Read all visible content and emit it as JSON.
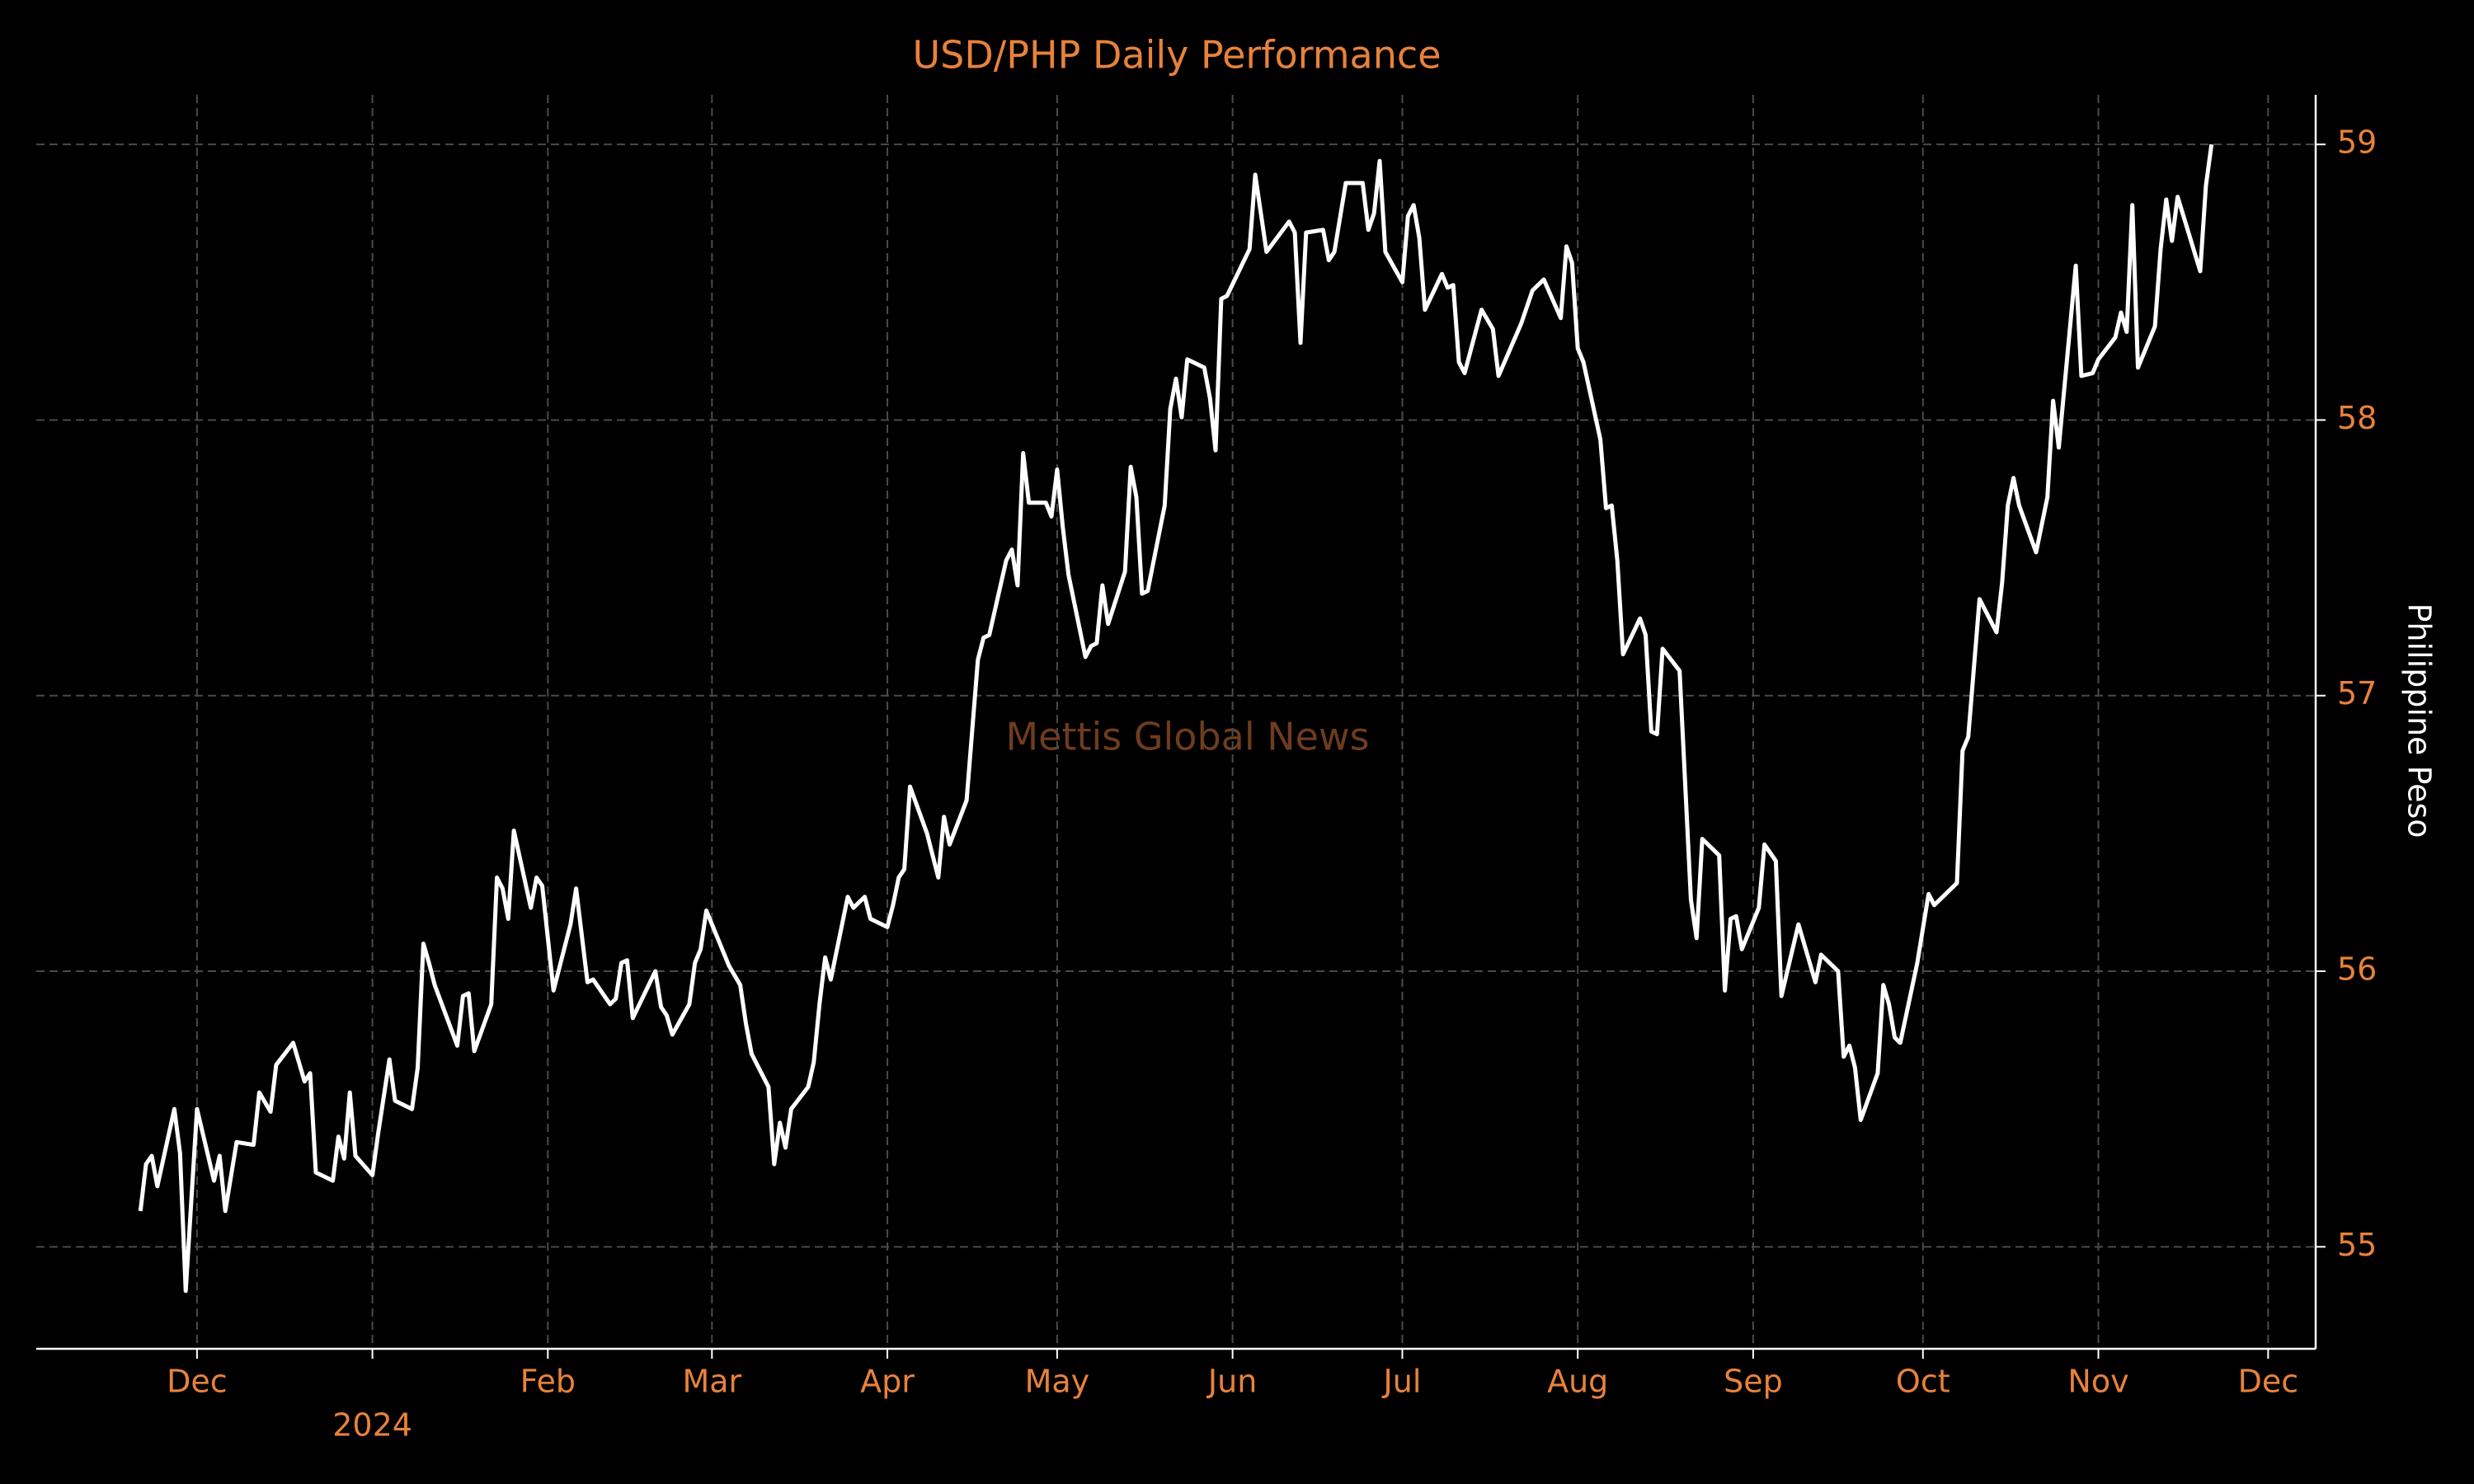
{
  "chart_data": {
    "type": "line",
    "title": "USD/PHP Daily Performance",
    "watermark": "Mettis Global News",
    "y_label": "Philippine Peso",
    "x": [
      -10,
      -9,
      -8,
      -7,
      -4,
      -3,
      -2,
      0,
      3,
      4,
      5,
      7,
      10,
      11,
      13,
      14,
      17,
      19,
      20,
      21,
      24,
      25,
      26,
      27,
      28,
      31,
      32,
      34,
      35,
      38,
      39,
      40,
      41,
      42,
      46,
      47,
      48,
      49,
      52,
      53,
      54,
      55,
      56,
      59,
      60,
      61,
      63,
      66,
      67,
      69,
      70,
      73,
      74,
      75,
      76,
      77,
      81,
      82,
      83,
      84,
      87,
      88,
      89,
      90,
      94,
      96,
      97,
      98,
      101,
      102,
      103,
      104,
      105,
      108,
      109,
      110,
      111,
      112,
      115,
      116,
      118,
      119,
      122,
      123,
      124,
      125,
      126,
      129,
      131,
      132,
      133,
      136,
      138,
      139,
      140,
      143,
      144,
      145,
      146,
      147,
      150,
      151,
      152,
      153,
      154,
      157,
      158,
      159,
      160,
      161,
      164,
      165,
      166,
      167,
      168,
      171,
      172,
      173,
      174,
      175,
      178,
      179,
      180,
      181,
      182,
      186,
      187,
      189,
      193,
      194,
      195,
      196,
      199,
      200,
      201,
      203,
      206,
      207,
      208,
      209,
      210,
      213,
      214,
      215,
      216,
      217,
      220,
      221,
      222,
      223,
      224,
      227,
      229,
      230,
      234,
      236,
      238,
      241,
      242,
      243,
      244,
      245,
      248,
      249,
      250,
      251,
      252,
      255,
      256,
      257,
      258,
      259,
      262,
      264,
      265,
      266,
      269,
      270,
      271,
      272,
      273,
      276,
      277,
      279,
      280,
      283,
      286,
      287,
      290,
      291,
      292,
      293,
      294,
      297,
      298,
      299,
      300,
      301,
      304,
      306,
      307,
      311,
      312,
      313,
      315,
      318,
      319,
      320,
      321,
      322,
      325,
      327,
      328,
      329,
      332,
      333,
      335,
      336,
      339,
      340,
      341,
      342,
      343,
      346,
      347,
      348,
      349,
      350,
      354,
      355,
      356
    ],
    "series": [
      {
        "name": "USD/PHP",
        "color": "#ffffff",
        "values": [
          55.13,
          55.3,
          55.33,
          55.22,
          55.5,
          55.34,
          54.84,
          55.5,
          55.24,
          55.33,
          55.13,
          55.38,
          55.37,
          55.56,
          55.49,
          55.66,
          55.74,
          55.6,
          55.63,
          55.27,
          55.24,
          55.4,
          55.32,
          55.56,
          55.33,
          55.26,
          55.41,
          55.68,
          55.53,
          55.5,
          55.65,
          56.1,
          56.03,
          55.95,
          55.73,
          55.91,
          55.92,
          55.71,
          55.88,
          56.34,
          56.3,
          56.19,
          56.51,
          56.23,
          56.34,
          56.31,
          55.93,
          56.17,
          56.3,
          55.96,
          55.97,
          55.88,
          55.9,
          56.03,
          56.04,
          55.83,
          56.0,
          55.87,
          55.84,
          55.77,
          55.88,
          56.03,
          56.08,
          56.22,
          56.02,
          55.95,
          55.81,
          55.7,
          55.58,
          55.3,
          55.45,
          55.36,
          55.5,
          55.58,
          55.67,
          55.88,
          56.05,
          55.97,
          56.27,
          56.23,
          56.27,
          56.19,
          56.16,
          56.24,
          56.34,
          56.37,
          56.67,
          56.5,
          56.34,
          56.56,
          56.46,
          56.62,
          57.13,
          57.21,
          57.22,
          57.49,
          57.53,
          57.4,
          57.88,
          57.7,
          57.7,
          57.65,
          57.82,
          57.61,
          57.44,
          57.14,
          57.18,
          57.19,
          57.4,
          57.26,
          57.45,
          57.83,
          57.72,
          57.37,
          57.38,
          57.69,
          58.04,
          58.15,
          58.01,
          58.22,
          58.19,
          58.08,
          57.89,
          58.44,
          58.45,
          58.62,
          58.89,
          58.61,
          58.72,
          58.68,
          58.28,
          58.68,
          58.69,
          58.58,
          58.61,
          58.86,
          58.86,
          58.69,
          58.75,
          58.94,
          58.61,
          58.5,
          58.74,
          58.78,
          58.66,
          58.4,
          58.53,
          58.48,
          58.49,
          58.21,
          58.17,
          58.4,
          58.33,
          58.16,
          58.35,
          58.47,
          58.51,
          58.37,
          58.63,
          58.57,
          58.26,
          58.21,
          57.93,
          57.68,
          57.69,
          57.49,
          57.15,
          57.28,
          57.22,
          56.87,
          56.86,
          57.17,
          57.09,
          56.26,
          56.12,
          56.48,
          56.42,
          55.93,
          56.19,
          56.2,
          56.08,
          56.23,
          56.46,
          56.4,
          55.91,
          56.17,
          55.96,
          56.06,
          56.0,
          55.69,
          55.73,
          55.65,
          55.46,
          55.63,
          55.95,
          55.88,
          55.76,
          55.74,
          56.03,
          56.28,
          56.24,
          56.32,
          56.8,
          56.85,
          57.35,
          57.23,
          57.41,
          57.69,
          57.79,
          57.69,
          57.52,
          57.72,
          58.07,
          57.9,
          58.56,
          58.16,
          58.17,
          58.22,
          58.3,
          58.39,
          58.32,
          58.78,
          58.19,
          58.34,
          58.62,
          58.8,
          58.65,
          58.81,
          58.54,
          58.85,
          59.0
        ]
      }
    ],
    "xlim": [
      -28.4,
      374.4
    ],
    "xticks": [
      {
        "value": 0,
        "label": "Dec"
      },
      {
        "value": 62,
        "label": "Feb"
      },
      {
        "value": 91,
        "label": "Mar"
      },
      {
        "value": 122,
        "label": "Apr"
      },
      {
        "value": 152,
        "label": "May"
      },
      {
        "value": 183,
        "label": "Jun"
      },
      {
        "value": 213,
        "label": "Jul"
      },
      {
        "value": 244,
        "label": "Aug"
      },
      {
        "value": 275,
        "label": "Sep"
      },
      {
        "value": 305,
        "label": "Oct"
      },
      {
        "value": 336,
        "label": "Nov"
      },
      {
        "value": 366,
        "label": "Dec"
      }
    ],
    "year_ticks": [
      {
        "value": 31,
        "label": "2024"
      }
    ],
    "ylim": [
      54.63,
      59.18
    ],
    "yticks": [
      55,
      56,
      57,
      58,
      59
    ],
    "y_axis_side": "right",
    "grid": true
  }
}
